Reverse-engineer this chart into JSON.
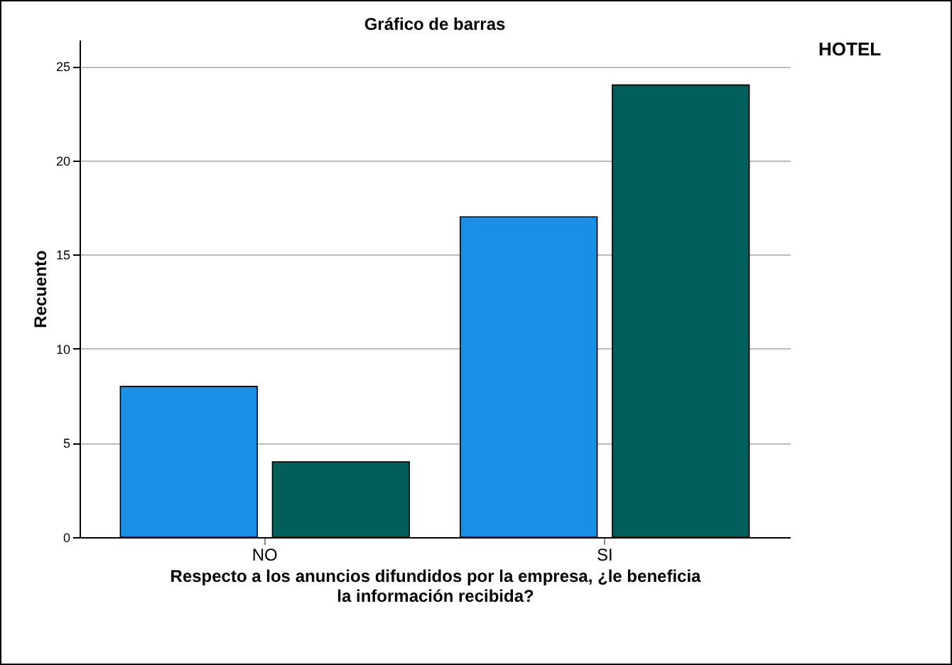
{
  "chart_data": {
    "type": "bar",
    "title": "Gráfico de barras",
    "xlabel": "Respecto a los anuncios difundidos por la empresa, ¿le beneficia la información recibida?",
    "ylabel": "Recuento",
    "legend_title": "HOTEL",
    "grid": "y",
    "categories": [
      "NO",
      "SI"
    ],
    "series": [
      {
        "color": "#1a8fe6",
        "values": [
          8,
          17
        ]
      },
      {
        "color": "#005e5b",
        "values": [
          4,
          24
        ]
      }
    ],
    "ylim": [
      0,
      26.4
    ],
    "yticks": [
      0,
      5,
      10,
      15,
      20,
      25
    ]
  }
}
